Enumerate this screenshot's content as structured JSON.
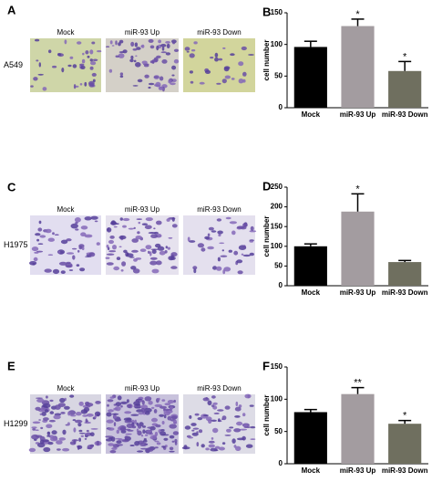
{
  "panels": [
    {
      "letter": "A",
      "cell_line": "A549",
      "image_labels": [
        "Mock",
        "miR-93 Up",
        "miR-93 Down"
      ]
    },
    {
      "letter": "C",
      "cell_line": "H1975",
      "image_labels": [
        "Mock",
        "miR-93 Up",
        "miR-93 Down"
      ]
    },
    {
      "letter": "E",
      "cell_line": "H1299",
      "image_labels": [
        "Mock",
        "miR-93 Up",
        "miR-93 Down"
      ]
    }
  ],
  "chart_data": [
    {
      "type": "bar",
      "panel_label": "B",
      "ylabel": "cell number",
      "categories": [
        "Mock",
        "miR-93 Up",
        "miR-93 Down"
      ],
      "values": [
        96,
        129,
        58
      ],
      "errors": [
        9,
        11,
        15
      ],
      "significance": [
        null,
        "*",
        "*"
      ],
      "colors": [
        "#000000",
        "#a39ca0",
        "#6f6f5f"
      ],
      "ylim": [
        0,
        150
      ],
      "yticks": [
        0,
        50,
        100,
        150
      ]
    },
    {
      "type": "bar",
      "panel_label": "D",
      "ylabel": "cell number",
      "categories": [
        "Mock",
        "miR-93 Up",
        "miR-93 Down"
      ],
      "values": [
        100,
        188,
        60
      ],
      "errors": [
        6,
        45,
        4
      ],
      "significance": [
        null,
        "*",
        null
      ],
      "colors": [
        "#000000",
        "#a39ca0",
        "#6f6f5f"
      ],
      "ylim": [
        0,
        250
      ],
      "yticks": [
        0,
        50,
        100,
        150,
        200,
        250
      ]
    },
    {
      "type": "bar",
      "panel_label": "F",
      "ylabel": "cell number",
      "categories": [
        "Mock",
        "miR-93 Up",
        "miR-93 Down"
      ],
      "values": [
        80,
        108,
        62
      ],
      "errors": [
        4,
        10,
        5
      ],
      "significance": [
        null,
        "**",
        "*"
      ],
      "colors": [
        "#000000",
        "#a39ca0",
        "#6f6f5f"
      ],
      "ylim": [
        0,
        150
      ],
      "yticks": [
        0,
        50,
        100,
        150
      ]
    }
  ]
}
